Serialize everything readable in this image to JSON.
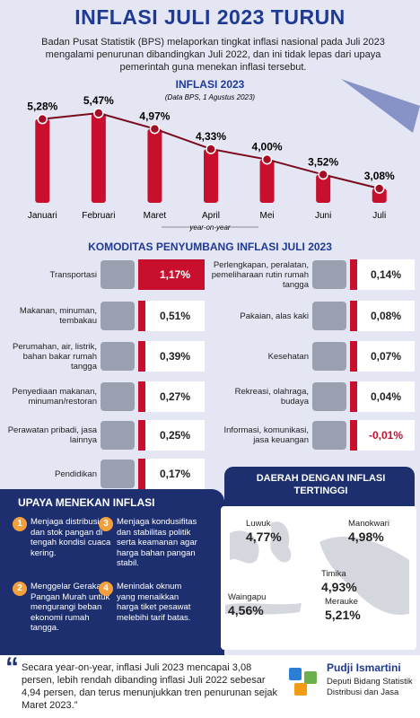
{
  "header": {
    "title": "INFLASI JULI 2023 TURUN",
    "intro": "Badan Pusat Statistik (BPS) melaporkan tingkat inflasi nasional pada Juli 2023 mengalami penurunan dibandingkan Juli 2022, dan ini tidak lepas dari upaya pemerintah guna menekan inflasi tersebut."
  },
  "chart_data": {
    "type": "bar",
    "title": "INFLASI 2023",
    "subtitle": "(Data BPS, 1 Agustus 2023)",
    "x_label": "year-on-year",
    "categories": [
      "Januari",
      "Februari",
      "Maret",
      "April",
      "Mei",
      "Juni",
      "Juli"
    ],
    "values": [
      5.28,
      5.47,
      4.97,
      4.33,
      4.0,
      3.52,
      3.08
    ],
    "value_labels": [
      "5,28%",
      "5,47%",
      "4,97%",
      "4,33%",
      "4,00%",
      "3,52%",
      "3,08%"
    ],
    "color": "#c8102e"
  },
  "commodities": {
    "title": "KOMODITAS PENYUMBANG INFLASI JULI 2023",
    "left": [
      {
        "label": "Transportasi",
        "value": "1,17%"
      },
      {
        "label": "Makanan, minuman, tembakau",
        "value": "0,51%"
      },
      {
        "label": "Perumahan, air, listrik, bahan bakar rumah tangga",
        "value": "0,39%"
      },
      {
        "label": "Penyediaan makanan, minuman/restoran",
        "value": "0,27%"
      },
      {
        "label": "Perawatan pribadi, jasa lainnya",
        "value": "0,25%"
      },
      {
        "label": "Pendidikan",
        "value": "0,17%"
      }
    ],
    "right": [
      {
        "label": "Perlengkapan, peralatan, pemeliharaan rutin rumah tangga",
        "value": "0,14%"
      },
      {
        "label": "Pakaian, alas kaki",
        "value": "0,08%"
      },
      {
        "label": "Kesehatan",
        "value": "0,07%"
      },
      {
        "label": "Rekreasi, olahraga, budaya",
        "value": "0,04%"
      },
      {
        "label": "Informasi, komunikasi, jasa keuangan",
        "value": "-0,01%"
      }
    ]
  },
  "efforts": {
    "title": "UPAYA MENEKAN INFLASI",
    "items": [
      {
        "number": "1",
        "text": "Menjaga distribusi dan stok pangan di tengah kondisi cuaca kering."
      },
      {
        "number": "2",
        "text": "Menggelar Gerakan Pangan Murah untuk mengurangi beban ekonomi rumah tangga."
      },
      {
        "number": "3",
        "text": "Menjaga kondusifitas dan stabilitas politik serta keamanan agar harga bahan pangan stabil."
      },
      {
        "number": "4",
        "text": "Menindak oknum yang menaikkan harga tiket pesawat melebihi tarif batas."
      }
    ]
  },
  "regions": {
    "title": "DAERAH DENGAN INFLASI TERTINGGI",
    "items": [
      {
        "name": "Luwuk",
        "value": "4,77%"
      },
      {
        "name": "Manokwari",
        "value": "4,98%"
      },
      {
        "name": "Timika",
        "value": "4,93%"
      },
      {
        "name": "Waingapu",
        "value": "4,56%"
      },
      {
        "name": "Merauke",
        "value": "5,21%"
      }
    ]
  },
  "quote": {
    "text": "Secara year-on-year, inflasi Juli 2023 mencapai 3,08 persen, lebih rendah dibanding inflasi Juli 2022 sebesar 4,94 persen, dan terus menunjukkan tren penurunan sejak Maret 2023.”",
    "name": "Pudji Ismartini",
    "position": "Deputi Bidang Statistik Distribusi dan Jasa"
  }
}
